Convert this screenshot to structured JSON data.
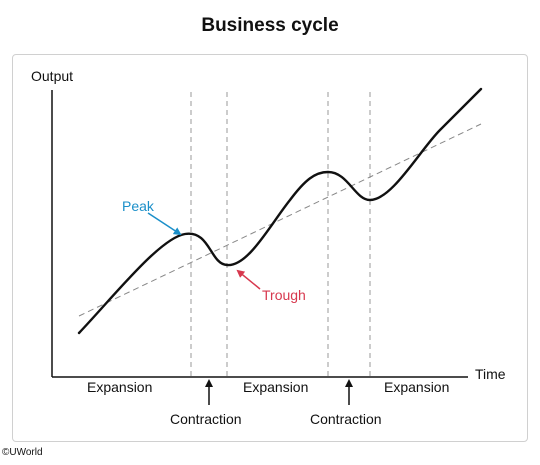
{
  "title": "Business cycle",
  "axes": {
    "y_label": "Output",
    "x_label": "Time"
  },
  "annotations": {
    "peak": {
      "text": "Peak",
      "color": "#1b8fc9"
    },
    "trough": {
      "text": "Trough",
      "color": "#d7384e"
    }
  },
  "phases": [
    "Expansion",
    "Expansion",
    "Expansion"
  ],
  "contractions": [
    "Contraction",
    "Contraction"
  ],
  "copyright": "©UWorld",
  "colors": {
    "curve": "#000000",
    "trend": "#888888",
    "guides": "#999999"
  }
}
